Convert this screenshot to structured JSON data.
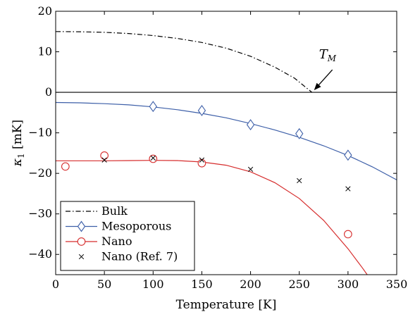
{
  "chart_data": {
    "type": "line",
    "xlabel": "Temperature [K]",
    "ylabel_symbol": "κ",
    "ylabel_subscript": "1",
    "ylabel_unit": " [mK]",
    "xlim": [
      0,
      350
    ],
    "ylim": [
      -45,
      20
    ],
    "xticks": [
      0,
      50,
      100,
      150,
      200,
      250,
      300,
      350
    ],
    "yticks": [
      20,
      10,
      0,
      -10,
      -20,
      -30,
      -40
    ],
    "grid": false,
    "legend_position": "bottom-left",
    "annotation": {
      "symbol": "T",
      "subscript": "M",
      "x": 263,
      "y": 0
    },
    "series": [
      {
        "name": "Bulk",
        "style": "dash-dot",
        "color": "#000000",
        "marker": "none",
        "x": [
          0,
          25,
          50,
          75,
          100,
          125,
          150,
          175,
          200,
          225,
          245,
          263
        ],
        "y": [
          15,
          14.95,
          14.8,
          14.5,
          14.0,
          13.3,
          12.3,
          10.9,
          8.9,
          6.2,
          3.5,
          0
        ]
      },
      {
        "name": "Mesoporous",
        "style": "solid",
        "color": "#3d5fa8",
        "marker": "diamond",
        "curve": {
          "x": [
            0,
            25,
            50,
            75,
            100,
            125,
            150,
            175,
            200,
            225,
            250,
            275,
            300,
            325,
            350
          ],
          "y": [
            -2.5,
            -2.6,
            -2.8,
            -3.1,
            -3.6,
            -4.3,
            -5.2,
            -6.3,
            -7.7,
            -9.3,
            -11.1,
            -13.2,
            -15.6,
            -18.4,
            -21.6
          ]
        },
        "points_x": [
          100,
          150,
          200,
          250,
          300
        ],
        "points_y": [
          -3.5,
          -4.5,
          -8.0,
          -10.2,
          -15.5
        ]
      },
      {
        "name": "Nano",
        "style": "solid",
        "color": "#d62c2c",
        "marker": "circle",
        "curve": {
          "x": [
            0,
            25,
            50,
            75,
            100,
            125,
            150,
            175,
            200,
            225,
            250,
            275,
            300,
            315,
            330
          ],
          "y": [
            -16.9,
            -16.9,
            -16.9,
            -16.85,
            -16.8,
            -16.85,
            -17.2,
            -18.0,
            -19.6,
            -22.3,
            -26.2,
            -31.6,
            -38.6,
            -43.4,
            -48.5
          ]
        },
        "points_x": [
          10,
          50,
          100,
          150,
          300
        ],
        "points_y": [
          -18.3,
          -15.6,
          -16.4,
          -17.5,
          -35.0
        ]
      },
      {
        "name": "Nano (Ref. 7)",
        "style": "none",
        "color": "#000000",
        "marker": "x",
        "points_x": [
          50,
          100,
          150,
          200,
          250,
          300
        ],
        "points_y": [
          -16.7,
          -16.2,
          -16.7,
          -19.0,
          -21.8,
          -23.8
        ]
      }
    ]
  }
}
